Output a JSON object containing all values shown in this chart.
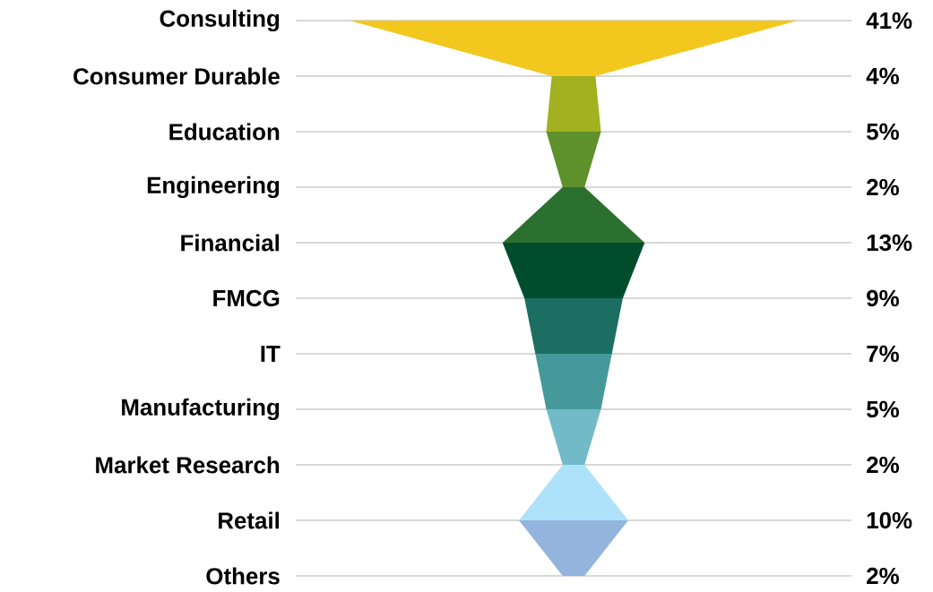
{
  "chart_data": {
    "type": "other",
    "categories": [
      "Consulting",
      "Consumer Durable",
      "Education",
      "Engineering",
      "Financial",
      "FMCG",
      "IT",
      "Manufacturing",
      "Market Research",
      "Retail",
      "Others"
    ],
    "values": [
      41,
      4,
      5,
      2,
      13,
      9,
      7,
      5,
      2,
      10,
      2
    ],
    "value_labels": [
      "41%",
      "4%",
      "5%",
      "2%",
      "13%",
      "9%",
      "7%",
      "5%",
      "2%",
      "10%",
      "2%"
    ],
    "colors": [
      "#f2c81e",
      "#a3b020",
      "#5e902b",
      "#2c7030",
      "#004d2e",
      "#1c6e63",
      "#45999a",
      "#72bac8",
      "#aee2fa",
      "#93b4dc",
      "#93b4dc"
    ]
  }
}
